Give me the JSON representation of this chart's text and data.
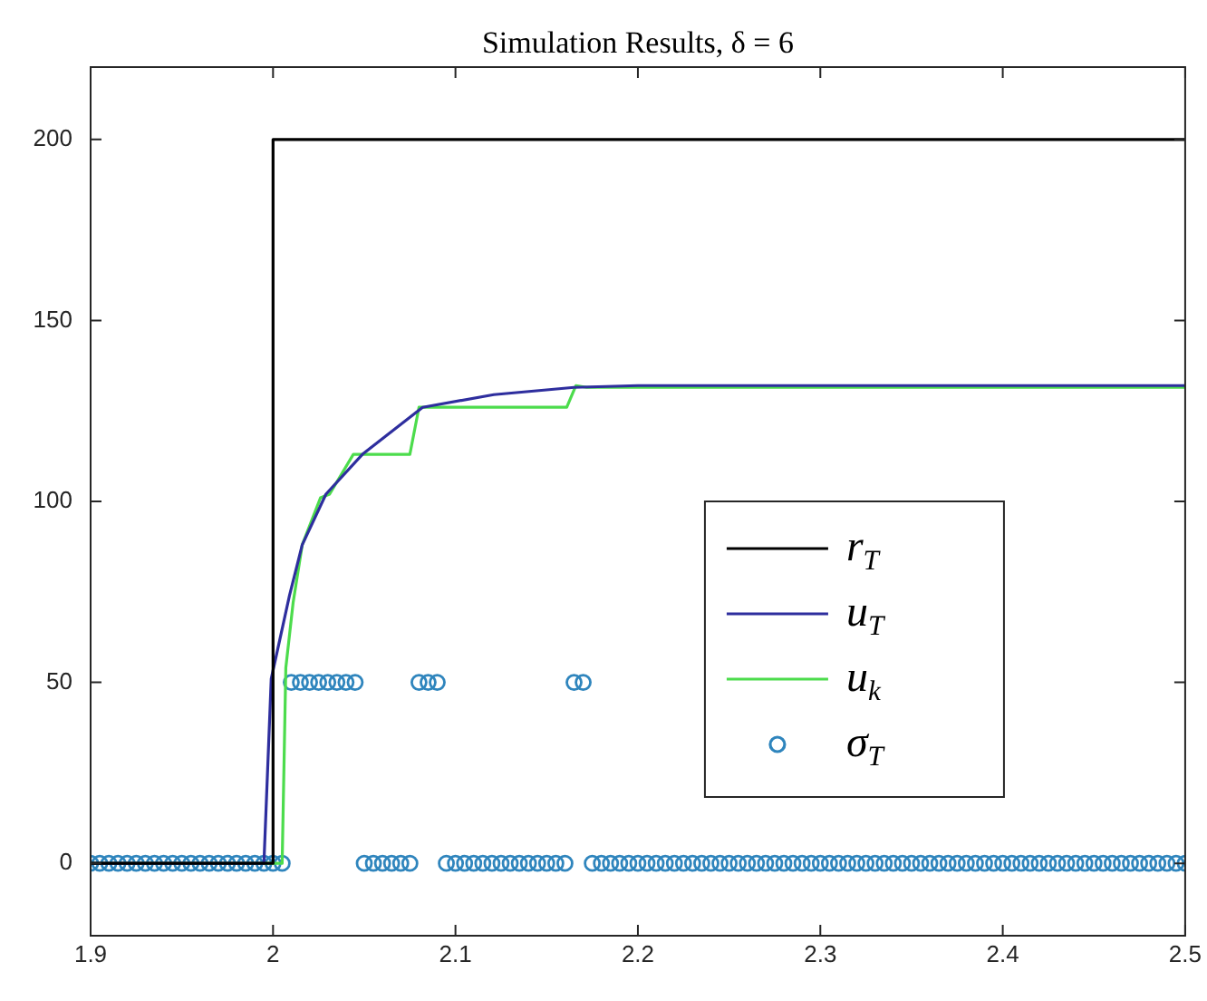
{
  "chart_data": {
    "type": "line",
    "title": "Simulation Results, δ = 6",
    "xlim": [
      1.9,
      2.5
    ],
    "xticks": [
      1.9,
      2,
      2.1,
      2.2,
      2.3,
      2.4,
      2.5
    ],
    "ylim": [
      -20,
      220
    ],
    "yticks": [
      0,
      50,
      100,
      150,
      200
    ],
    "grid": false,
    "legend": "right",
    "line_style": "solid",
    "series": [
      {
        "name": "r$_{T}$",
        "marker": "none",
        "color": "#000000",
        "x": [
          1.9,
          2,
          2,
          2.5
        ],
        "values": [
          0,
          0,
          200,
          200
        ]
      },
      {
        "name": "u$_{T}$",
        "marker": "none",
        "color": "#2e2e9e",
        "x": [
          1.9,
          1.995,
          1.999,
          2.009,
          2.016,
          2.029,
          2.049,
          2.082,
          2.121,
          2.165,
          2.2,
          2.5
        ],
        "values": [
          0,
          0,
          51,
          74,
          88,
          102,
          113,
          126,
          129.5,
          131.5,
          132,
          132
        ]
      },
      {
        "name": "u$_{k}$",
        "marker": "none",
        "color": "#4cdc4c",
        "x": [
          1.9,
          2.005,
          2.007,
          2.011,
          2.016,
          2.026,
          2.031,
          2.044,
          2.075,
          2.08,
          2.161,
          2.166,
          2.172,
          2.5
        ],
        "values": [
          0,
          0,
          54,
          72,
          88,
          101,
          102,
          113,
          113,
          126,
          126,
          132,
          131.5,
          131.5
        ]
      },
      {
        "name": "σ$_{T}$",
        "type": "scatter",
        "marker": "circle",
        "color": "#2f85bd",
        "x": [
          1.9,
          1.905,
          1.91,
          1.915,
          1.92,
          1.925,
          1.93,
          1.935,
          1.94,
          1.945,
          1.95,
          1.955,
          1.96,
          1.965,
          1.97,
          1.975,
          1.98,
          1.985,
          1.99,
          1.995,
          2,
          2.005,
          2.01,
          2.015,
          2.02,
          2.025,
          2.03,
          2.035,
          2.04,
          2.045,
          2.05,
          2.055,
          2.06,
          2.065,
          2.07,
          2.075,
          2.08,
          2.085,
          2.09,
          2.095,
          2.1,
          2.105,
          2.11,
          2.115,
          2.12,
          2.125,
          2.13,
          2.135,
          2.14,
          2.145,
          2.15,
          2.155,
          2.16,
          2.165,
          2.17,
          2.175,
          2.18,
          2.185,
          2.19,
          2.195,
          2.2,
          2.205,
          2.21,
          2.215,
          2.22,
          2.225,
          2.23,
          2.235,
          2.24,
          2.245,
          2.25,
          2.255,
          2.26,
          2.265,
          2.27,
          2.275,
          2.28,
          2.285,
          2.29,
          2.295,
          2.3,
          2.305,
          2.31,
          2.315,
          2.32,
          2.325,
          2.33,
          2.335,
          2.34,
          2.345,
          2.35,
          2.355,
          2.36,
          2.365,
          2.37,
          2.375,
          2.38,
          2.385,
          2.39,
          2.395,
          2.4,
          2.405,
          2.41,
          2.415,
          2.42,
          2.425,
          2.43,
          2.435,
          2.44,
          2.445,
          2.45,
          2.455,
          2.46,
          2.465,
          2.47,
          2.475,
          2.48,
          2.485,
          2.49,
          2.495,
          2.5
        ],
        "values": [
          0,
          0,
          0,
          0,
          0,
          0,
          0,
          0,
          0,
          0,
          0,
          0,
          0,
          0,
          0,
          0,
          0,
          0,
          0,
          0,
          0,
          0,
          50,
          50,
          50,
          50,
          50,
          50,
          50,
          50,
          0,
          0,
          0,
          0,
          0,
          0,
          50,
          50,
          50,
          0,
          0,
          0,
          0,
          0,
          0,
          0,
          0,
          0,
          0,
          0,
          0,
          0,
          0,
          50,
          50,
          0,
          0,
          0,
          0,
          0,
          0,
          0,
          0,
          0,
          0,
          0,
          0,
          0,
          0,
          0,
          0,
          0,
          0,
          0,
          0,
          0,
          0,
          0,
          0,
          0,
          0,
          0,
          0,
          0,
          0,
          0,
          0,
          0,
          0,
          0,
          0,
          0,
          0,
          0,
          0,
          0,
          0,
          0,
          0,
          0,
          0,
          0,
          0,
          0,
          0,
          0,
          0,
          0,
          0,
          0,
          0,
          0,
          0,
          0,
          0,
          0,
          0,
          0,
          0,
          0,
          0
        ]
      }
    ]
  }
}
